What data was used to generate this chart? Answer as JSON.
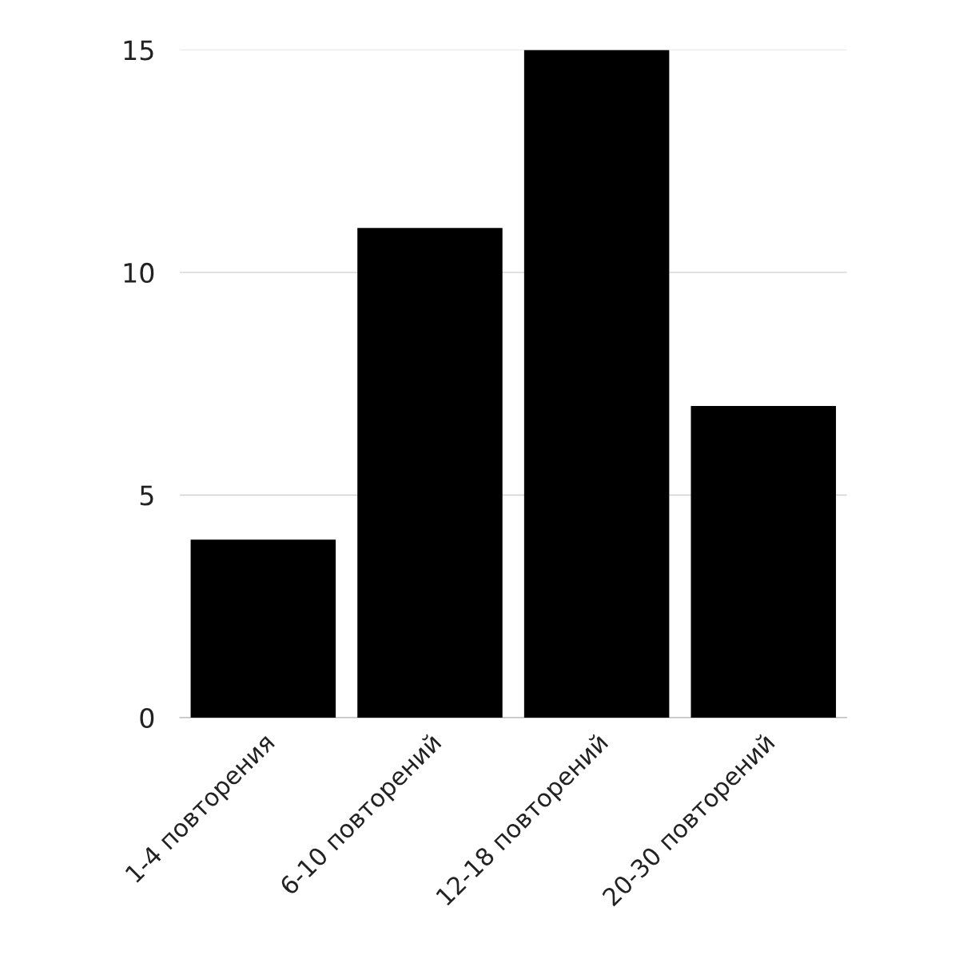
{
  "chart_data": {
    "type": "bar",
    "categories": [
      "1-4 повторения",
      "6-10 повторений",
      "12-18 повторений",
      "20-30 повторений"
    ],
    "values": [
      4,
      11,
      15,
      7
    ],
    "color": "#000000",
    "ylim": [
      0,
      15
    ],
    "yticks": [
      0,
      5,
      10,
      15
    ],
    "grid": "y",
    "legend": false
  }
}
